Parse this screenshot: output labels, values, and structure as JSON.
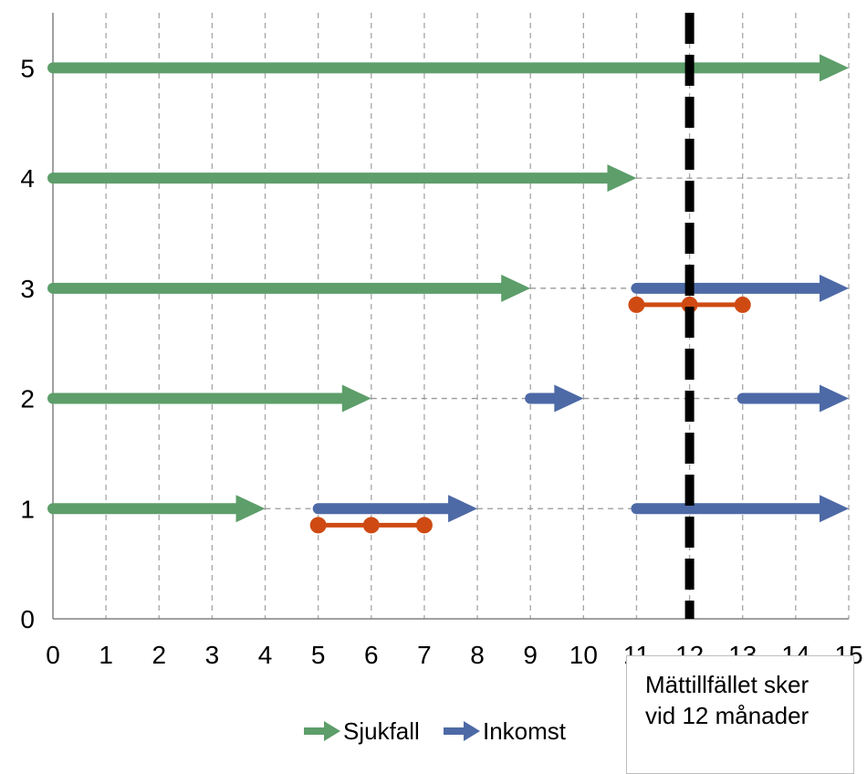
{
  "chart_data": {
    "type": "line",
    "title": "",
    "xlabel": "",
    "ylabel": "",
    "xlim": [
      0,
      15
    ],
    "ylim": [
      0,
      5.5
    ],
    "x_ticks": [
      "0",
      "1",
      "2",
      "3",
      "4",
      "5",
      "6",
      "7",
      "8",
      "9",
      "10",
      "11",
      "12",
      "13",
      "14",
      "15"
    ],
    "y_ticks": [
      "0",
      "1",
      "2",
      "3",
      "4",
      "5"
    ],
    "grid": "vertical dashed",
    "legend_position": "bottom-center",
    "colors": {
      "Sjukfall": "#5d9e6a",
      "Inkomst": "#4d6aa6",
      "segments": "#cf4a13",
      "gaps": "#999999",
      "reference_line": "#000000"
    },
    "series": [
      {
        "name": "Sjukfall",
        "arrows": [
          {
            "y": 5,
            "x_start": 0,
            "x_end": 15
          },
          {
            "y": 4,
            "x_start": 0,
            "x_end": 11
          },
          {
            "y": 3,
            "x_start": 0,
            "x_end": 9
          },
          {
            "y": 2,
            "x_start": 0,
            "x_end": 6
          },
          {
            "y": 1,
            "x_start": 0,
            "x_end": 4
          }
        ]
      },
      {
        "name": "Inkomst",
        "arrows": [
          {
            "y": 3,
            "x_start": 11,
            "x_end": 15
          },
          {
            "y": 2,
            "x_start": 9,
            "x_end": 10
          },
          {
            "y": 2,
            "x_start": 13,
            "x_end": 15
          },
          {
            "y": 1,
            "x_start": 5,
            "x_end": 8
          },
          {
            "y": 1,
            "x_start": 11,
            "x_end": 15
          }
        ]
      }
    ],
    "gaps": [
      {
        "y": 4,
        "x_start": 11,
        "x_end": 15
      },
      {
        "y": 3,
        "x_start": 9,
        "x_end": 11
      },
      {
        "y": 2,
        "x_start": 6,
        "x_end": 9
      },
      {
        "y": 2,
        "x_start": 10,
        "x_end": 13
      },
      {
        "y": 1,
        "x_start": 4,
        "x_end": 5
      },
      {
        "y": 1,
        "x_start": 8,
        "x_end": 11
      }
    ],
    "dot_segments": [
      {
        "y": 2.85,
        "points": [
          11,
          12,
          13
        ]
      },
      {
        "y": 0.85,
        "points": [
          5,
          6,
          7
        ]
      }
    ],
    "reference_line": {
      "x": 12
    },
    "annotation": {
      "line1": "Mättillfället sker",
      "line2": "vid 12 månader"
    }
  }
}
